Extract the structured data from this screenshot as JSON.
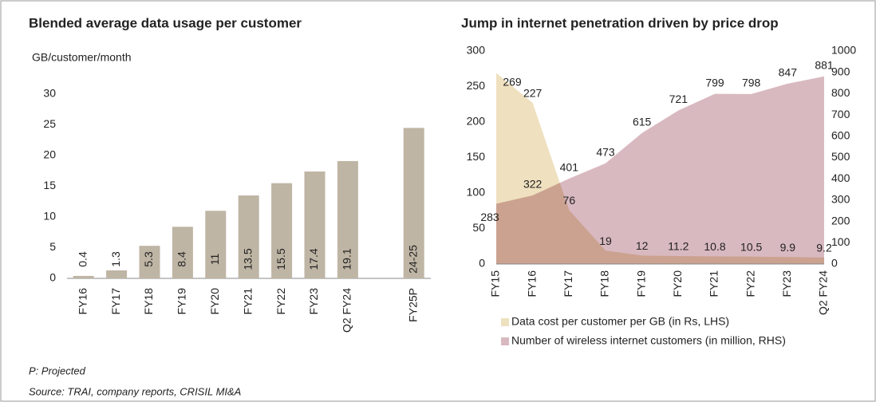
{
  "chart_data": [
    {
      "type": "bar",
      "title": "Blended average data usage per customer",
      "y_label": "GB/customer/month",
      "categories": [
        "FY16",
        "FY17",
        "FY18",
        "FY19",
        "FY20",
        "FY21",
        "FY22",
        "FY23",
        "Q2 FY24",
        "FY25P"
      ],
      "values": [
        0.4,
        1.3,
        5.3,
        8.4,
        11,
        13.5,
        15.5,
        17.4,
        19.1,
        24.5
      ],
      "value_labels": [
        "0.4",
        "1.3",
        "5.3",
        "8.4",
        "11",
        "13.5",
        "15.5",
        "17.4",
        "19.1",
        "24-25"
      ],
      "color": "#bfb5a5",
      "ylim": [
        0,
        30
      ],
      "yticks": [
        0,
        5,
        10,
        15,
        20,
        25,
        30
      ],
      "grid": false
    },
    {
      "type": "area",
      "title": "Jump in internet penetration driven by price drop",
      "categories": [
        "FY15",
        "FY16",
        "FY17",
        "FY18",
        "FY19",
        "FY20",
        "FY21",
        "FY22",
        "FY23",
        "Q2 FY24"
      ],
      "series": [
        {
          "name": "Data cost per customer per GB (in Rs, LHS)",
          "color": "#efe0bf",
          "values": [
            269,
            227,
            76,
            19,
            12,
            11.2,
            10.8,
            10.5,
            9.9,
            9.2
          ]
        },
        {
          "name": "Number of wireless internet customers (in million, RHS)",
          "color": "#d9b9c0",
          "axis": "y2",
          "values": [
            283,
            322,
            401,
            473,
            615,
            721,
            799,
            798,
            847,
            881
          ]
        }
      ],
      "ylim": [
        0,
        300
      ],
      "yticks": [
        0,
        50,
        100,
        150,
        200,
        250,
        300
      ],
      "y2lim": [
        0,
        1000
      ],
      "y2ticks": [
        0,
        100,
        200,
        300,
        400,
        500,
        600,
        700,
        800,
        900,
        1000
      ],
      "legend": "bottom",
      "grid": false
    }
  ],
  "footer": {
    "note": "P: Projected",
    "source": "Source: TRAI, company reports, CRISIL MI&A"
  }
}
